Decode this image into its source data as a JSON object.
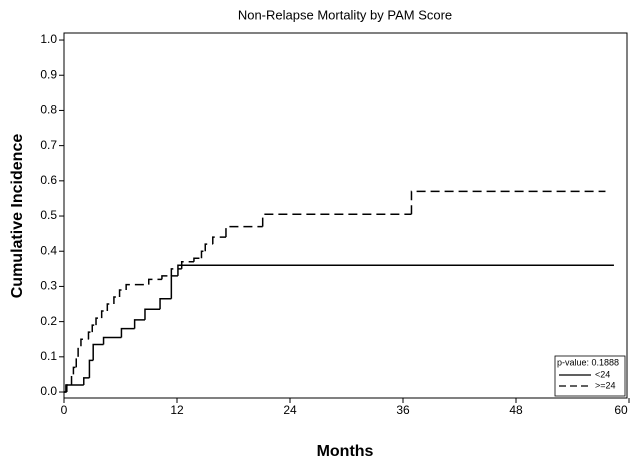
{
  "chart_data": {
    "type": "step",
    "title": "Non-Relapse Mortality by PAM Score",
    "x_label": "Months",
    "y_label": "Cumulative Incidence",
    "xlim": [
      0,
      60
    ],
    "ylim": [
      -0.017,
      1.02
    ],
    "xticks": [
      0,
      12,
      24,
      36,
      48,
      60
    ],
    "yticks": [
      {
        "value": 0,
        "label": "0.0"
      },
      0.1,
      0.2,
      0.3,
      0.4,
      0.5,
      0.6,
      0.7,
      0.8,
      0.9,
      {
        "value": 1,
        "label": "1.0"
      }
    ],
    "legend_title": "p-value:  0.1888",
    "legend_position": "lower right",
    "series": [
      {
        "name": "<24",
        "color": "#000000",
        "line_style": "solid",
        "x": [
          0,
          0.3,
          2.1,
          2.7,
          3.1,
          4.2,
          6.1,
          7.5,
          8.6,
          10.2,
          11.4,
          12.1,
          58.4
        ],
        "values": [
          0,
          0.02,
          0.04,
          0.09,
          0.135,
          0.155,
          0.18,
          0.205,
          0.235,
          0.265,
          0.33,
          0.36,
          0.36
        ]
      },
      {
        "name": ">=24",
        "color": "#000000",
        "line_style": "dashed",
        "x": [
          0,
          0.2,
          0.8,
          1.0,
          1.3,
          1.5,
          1.8,
          2.6,
          3.0,
          3.4,
          4.0,
          4.6,
          5.3,
          5.9,
          6.6,
          9.0,
          10.4,
          11.4,
          12.5,
          13.8,
          14.6,
          15.0,
          15.8,
          17.2,
          21.1,
          36.9,
          57.5
        ],
        "values": [
          0,
          0.02,
          0.05,
          0.07,
          0.1,
          0.13,
          0.15,
          0.17,
          0.19,
          0.21,
          0.23,
          0.25,
          0.27,
          0.29,
          0.305,
          0.32,
          0.33,
          0.35,
          0.37,
          0.38,
          0.4,
          0.42,
          0.44,
          0.47,
          0.505,
          0.57,
          0.57
        ]
      }
    ]
  }
}
